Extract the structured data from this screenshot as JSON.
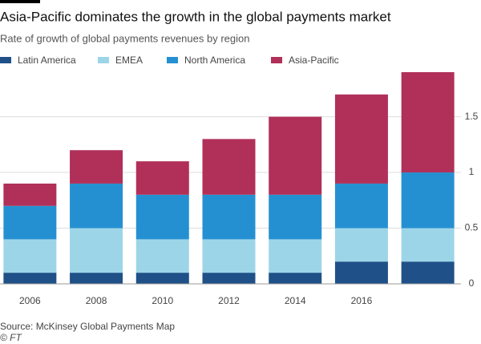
{
  "chart_data": {
    "type": "stacked_bar",
    "title": "Asia-Pacific dominates the growth in the global payments market",
    "subtitle": "Rate of growth of global payments revenues by region",
    "categories": [
      "2006",
      "2008",
      "2010",
      "2012",
      "2014",
      "2016",
      null
    ],
    "series": [
      {
        "name": "Latin America",
        "color": "#1f5188",
        "values": [
          0.1,
          0.1,
          0.1,
          0.1,
          0.1,
          0.2,
          0.2
        ]
      },
      {
        "name": "EMEA",
        "color": "#9dd5e8",
        "values": [
          0.3,
          0.4,
          0.3,
          0.3,
          0.3,
          0.3,
          0.3
        ]
      },
      {
        "name": "North America",
        "color": "#2590d1",
        "values": [
          0.3,
          0.4,
          0.4,
          0.4,
          0.4,
          0.4,
          0.5
        ]
      },
      {
        "name": "Asia-Pacific",
        "color": "#b0305a",
        "values": [
          0.2,
          0.3,
          0.3,
          0.5,
          0.7,
          0.8,
          0.9
        ]
      }
    ],
    "ylim": [
      0,
      1.9
    ],
    "yticks": [
      0,
      0.5,
      1,
      1.5
    ],
    "grid": true,
    "source": "Source: McKinsey Global Payments Map",
    "credit": "© FT"
  }
}
